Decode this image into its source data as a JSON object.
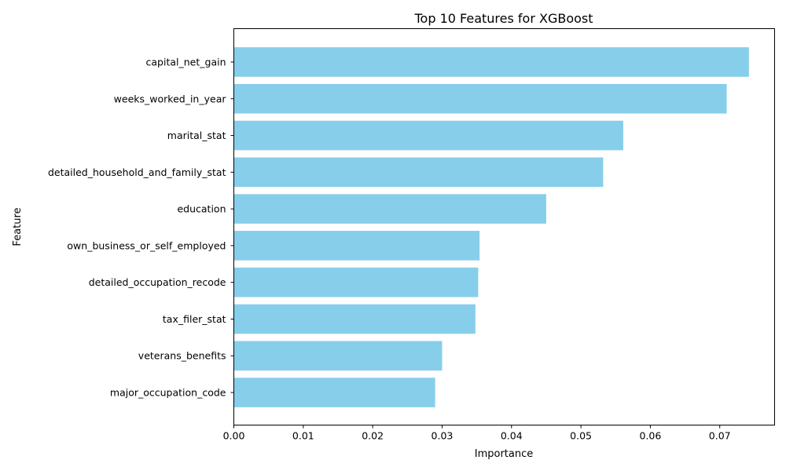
{
  "chart_data": {
    "type": "bar",
    "orientation": "horizontal",
    "title": "Top 10 Features for XGBoost",
    "xlabel": "Importance",
    "ylabel": "Feature",
    "categories": [
      "capital_net_gain",
      "weeks_worked_in_year",
      "marital_stat",
      "detailed_household_and_family_stat",
      "education",
      "own_business_or_self_employed",
      "detailed_occupation_recode",
      "tax_filer_stat",
      "veterans_benefits",
      "major_occupation_code"
    ],
    "values": [
      0.0742,
      0.071,
      0.0561,
      0.0532,
      0.045,
      0.0354,
      0.0352,
      0.0348,
      0.03,
      0.029
    ],
    "xlim": [
      0,
      0.0779
    ],
    "xticks": [
      0.0,
      0.01,
      0.02,
      0.03,
      0.04,
      0.05,
      0.06,
      0.07
    ],
    "xtick_labels": [
      "0.00",
      "0.01",
      "0.02",
      "0.03",
      "0.04",
      "0.05",
      "0.06",
      "0.07"
    ],
    "bar_color": "#87ceeb",
    "grid": false
  }
}
